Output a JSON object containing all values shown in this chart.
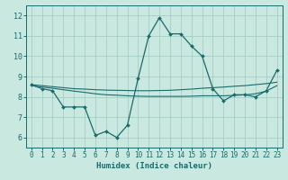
{
  "xlabel": "Humidex (Indice chaleur)",
  "bg_color": "#c8e8e0",
  "line_color": "#1a6b6b",
  "grid_color": "#a0c8c0",
  "xlim": [
    -0.5,
    23.5
  ],
  "ylim": [
    5.5,
    12.5
  ],
  "xticks": [
    0,
    1,
    2,
    3,
    4,
    5,
    6,
    7,
    8,
    9,
    10,
    11,
    12,
    13,
    14,
    15,
    16,
    17,
    18,
    19,
    20,
    21,
    22,
    23
  ],
  "yticks": [
    6,
    7,
    8,
    9,
    10,
    11,
    12
  ],
  "line1_x": [
    0,
    1,
    2,
    3,
    4,
    5,
    6,
    7,
    8,
    9,
    10,
    11,
    12,
    13,
    14,
    15,
    16,
    17,
    18,
    19,
    20,
    21,
    22,
    23
  ],
  "line1_y": [
    8.6,
    8.4,
    8.3,
    7.5,
    7.5,
    7.5,
    6.1,
    6.3,
    6.0,
    6.6,
    8.9,
    11.0,
    11.9,
    11.1,
    11.1,
    10.5,
    10.0,
    8.4,
    7.8,
    8.1,
    8.1,
    8.0,
    8.3,
    9.3
  ],
  "line2_x": [
    0,
    1,
    2,
    3,
    4,
    5,
    6,
    7,
    8,
    9,
    10,
    11,
    12,
    13,
    14,
    15,
    16,
    17,
    18,
    19,
    20,
    21,
    22,
    23
  ],
  "line2_y": [
    8.6,
    8.55,
    8.5,
    8.45,
    8.4,
    8.38,
    8.35,
    8.33,
    8.32,
    8.31,
    8.3,
    8.3,
    8.31,
    8.32,
    8.35,
    8.38,
    8.42,
    8.45,
    8.48,
    8.52,
    8.55,
    8.6,
    8.65,
    8.72
  ],
  "line3_x": [
    0,
    1,
    2,
    3,
    4,
    5,
    6,
    7,
    8,
    9,
    10,
    11,
    12,
    13,
    14,
    15,
    16,
    17,
    18,
    19,
    20,
    21,
    22,
    23
  ],
  "line3_y": [
    8.55,
    8.48,
    8.42,
    8.35,
    8.28,
    8.22,
    8.15,
    8.1,
    8.08,
    8.05,
    8.03,
    8.02,
    8.02,
    8.02,
    8.02,
    8.03,
    8.05,
    8.05,
    8.05,
    8.07,
    8.1,
    8.15,
    8.28,
    8.55
  ]
}
